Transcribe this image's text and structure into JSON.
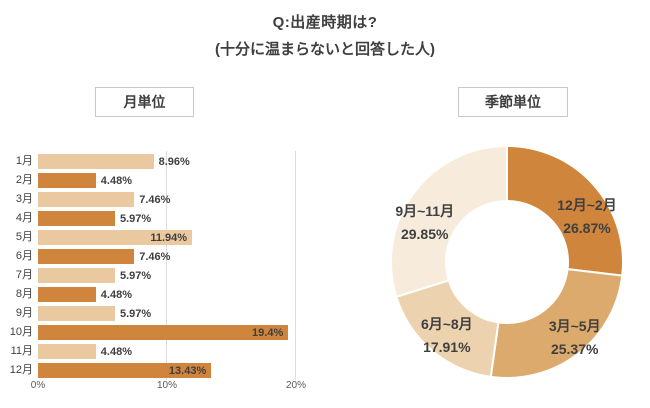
{
  "header": {
    "title": "Q:出産時期は?",
    "subtitle": "(十分に温まらないと回答した人)"
  },
  "panels": {
    "monthly": "月単位",
    "seasonal": "季節単位"
  },
  "colors": {
    "bar_light": "#ebc9a0",
    "bar_dark": "#d0853c",
    "text": "#3f3f3f",
    "axis_text": "#595959",
    "gridline": "#dcdcdc",
    "box_border": "#c9c9c9",
    "donut_gap": "#ffffff"
  },
  "chart_data": [
    {
      "type": "bar",
      "orientation": "horizontal",
      "title": "月単位",
      "categories": [
        "1月",
        "2月",
        "3月",
        "4月",
        "5月",
        "6月",
        "7月",
        "8月",
        "9月",
        "10月",
        "11月",
        "12月"
      ],
      "values": [
        8.96,
        4.48,
        7.46,
        5.97,
        11.94,
        7.46,
        5.97,
        4.48,
        5.97,
        19.4,
        4.48,
        13.43
      ],
      "labels": [
        "8.96%",
        "4.48%",
        "7.46%",
        "5.97%",
        "11.94%",
        "7.46%",
        "5.97%",
        "4.48%",
        "5.97%",
        "19.4%",
        "4.48%",
        "13.43%"
      ],
      "bar_colors": [
        "#ebc9a0",
        "#d0853c",
        "#ebc9a0",
        "#d0853c",
        "#ebc9a0",
        "#d0853c",
        "#ebc9a0",
        "#d0853c",
        "#ebc9a0",
        "#d0853c",
        "#ebc9a0",
        "#d0853c"
      ],
      "xlabel": "",
      "ylabel": "",
      "xlim": [
        0,
        20
      ],
      "x_ticks": [
        "0%",
        "10%",
        "20%"
      ],
      "grid": "vertical",
      "inside_label_threshold": 10
    },
    {
      "type": "pie",
      "donut": true,
      "title": "季節単位",
      "start_angle_deg": 0,
      "direction": "clockwise",
      "segments": [
        {
          "label": "12月~2月",
          "value": 26.87,
          "text": "26.87%",
          "color": "#d0853c"
        },
        {
          "label": "3月~5月",
          "value": 25.37,
          "text": "25.37%",
          "color": "#dcaa6c"
        },
        {
          "label": "6月~8月",
          "value": 17.91,
          "text": "17.91%",
          "color": "#ecd2ae"
        },
        {
          "label": "9月~11月",
          "value": 29.85,
          "text": "29.85%",
          "color": "#f7ecdc"
        }
      ]
    }
  ]
}
